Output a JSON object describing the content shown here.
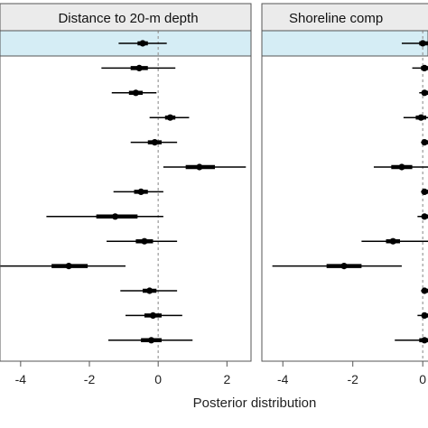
{
  "chart_data": [
    {
      "type": "forest",
      "title": "Distance to 20-m depth",
      "xlim": [
        -4.6,
        2.7
      ],
      "xticks": [
        -4,
        -2,
        0,
        2
      ],
      "xtick_labels": [
        "-4",
        "-2",
        "0",
        "2"
      ],
      "reference_line": 0,
      "highlighted_rows": [
        0
      ],
      "rows": [
        {
          "mean": -0.45,
          "inner": [
            -0.6,
            -0.3
          ],
          "outer": [
            -1.15,
            0.25
          ]
        },
        {
          "mean": -0.55,
          "inner": [
            -0.8,
            -0.3
          ],
          "outer": [
            -1.65,
            0.5
          ]
        },
        {
          "mean": -0.65,
          "inner": [
            -0.85,
            -0.45
          ],
          "outer": [
            -1.35,
            -0.05
          ]
        },
        {
          "mean": 0.35,
          "inner": [
            0.2,
            0.5
          ],
          "outer": [
            -0.25,
            0.9
          ]
        },
        {
          "mean": -0.1,
          "inner": [
            -0.3,
            0.1
          ],
          "outer": [
            -0.8,
            0.55
          ]
        },
        {
          "mean": 1.2,
          "inner": [
            0.8,
            1.65
          ],
          "outer": [
            0.15,
            2.55
          ]
        },
        {
          "mean": -0.5,
          "inner": [
            -0.7,
            -0.3
          ],
          "outer": [
            -1.3,
            0.15
          ]
        },
        {
          "mean": -1.25,
          "inner": [
            -1.8,
            -0.6
          ],
          "outer": [
            -3.25,
            0.15
          ]
        },
        {
          "mean": -0.4,
          "inner": [
            -0.65,
            -0.15
          ],
          "outer": [
            -1.5,
            0.55
          ]
        },
        {
          "mean": -2.6,
          "inner": [
            -3.1,
            -2.05
          ],
          "outer": [
            -4.6,
            -0.95
          ]
        },
        {
          "mean": -0.25,
          "inner": [
            -0.45,
            -0.05
          ],
          "outer": [
            -1.1,
            0.55
          ]
        },
        {
          "mean": -0.15,
          "inner": [
            -0.4,
            0.1
          ],
          "outer": [
            -0.95,
            0.7
          ]
        },
        {
          "mean": -0.2,
          "inner": [
            -0.5,
            0.1
          ],
          "outer": [
            -1.45,
            1.0
          ]
        }
      ]
    },
    {
      "type": "forest",
      "title": "Shoreline comp",
      "xlim": [
        -4.6,
        0.15
      ],
      "xticks": [
        -4,
        -2,
        0
      ],
      "xtick_labels": [
        "-4",
        "-2",
        "0"
      ],
      "reference_line": 0,
      "highlighted_rows": [
        0
      ],
      "rows": [
        {
          "mean": 0.0,
          "inner": [
            -0.1,
            0.2
          ],
          "outer": [
            -0.6,
            0.5
          ]
        },
        {
          "mean": 0.05,
          "inner": [
            -0.05,
            0.25
          ],
          "outer": [
            -0.3,
            0.5
          ]
        },
        {
          "mean": 0.05,
          "inner": [
            0.0,
            0.2
          ],
          "outer": [
            -0.1,
            0.4
          ]
        },
        {
          "mean": -0.05,
          "inner": [
            -0.2,
            0.1
          ],
          "outer": [
            -0.55,
            0.35
          ]
        },
        {
          "mean": 0.05,
          "inner": [
            0.0,
            0.15
          ],
          "outer": [
            -0.05,
            0.35
          ]
        },
        {
          "mean": -0.6,
          "inner": [
            -0.9,
            -0.3
          ],
          "outer": [
            -1.4,
            0.2
          ]
        },
        {
          "mean": 0.05,
          "inner": [
            0.0,
            0.15
          ],
          "outer": [
            -0.05,
            0.35
          ]
        },
        {
          "mean": 0.05,
          "inner": [
            0.0,
            0.15
          ],
          "outer": [
            -0.15,
            0.4
          ]
        },
        {
          "mean": -0.85,
          "inner": [
            -1.05,
            -0.65
          ],
          "outer": [
            -1.75,
            0.15
          ]
        },
        {
          "mean": -2.25,
          "inner": [
            -2.75,
            -1.75
          ],
          "outer": [
            -4.3,
            -0.6
          ]
        },
        {
          "mean": 0.05,
          "inner": [
            0.0,
            0.15
          ],
          "outer": [
            -0.05,
            0.35
          ]
        },
        {
          "mean": 0.05,
          "inner": [
            0.0,
            0.15
          ],
          "outer": [
            -0.15,
            0.4
          ]
        },
        {
          "mean": 0.05,
          "inner": [
            -0.1,
            0.2
          ],
          "outer": [
            -0.8,
            0.55
          ]
        }
      ]
    }
  ],
  "xlabel": "Posterior distribution",
  "colors": {
    "highlight": "#d5edf5",
    "strip": "#ebebeb",
    "mark": "#000000",
    "reference": "#9a9a9a",
    "frame": "#555555"
  }
}
